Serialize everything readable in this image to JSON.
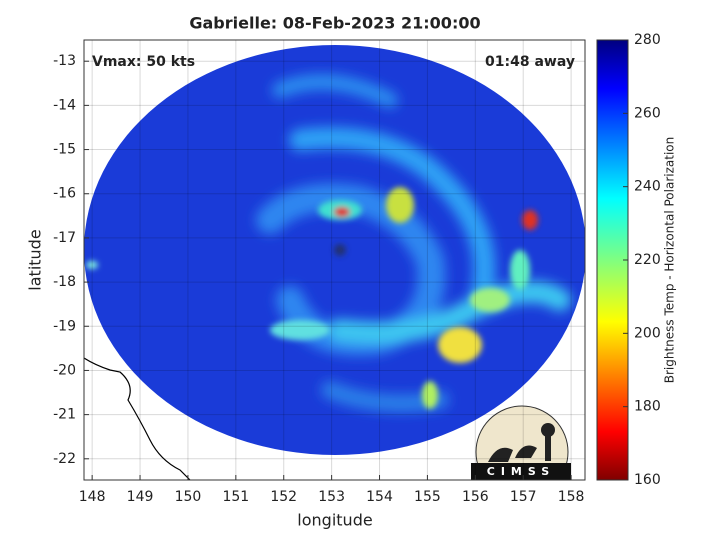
{
  "chart_data": {
    "type": "map",
    "title": "Gabrielle: 08-Feb-2023 21:00:00",
    "annotations": [
      "Vmax: 50 kts",
      "01:48 away"
    ],
    "xlabel": "longitude",
    "ylabel": "latitude",
    "xlim": [
      147.83,
      158.29
    ],
    "xticks": [
      148,
      149,
      150,
      151,
      152,
      153,
      154,
      155,
      156,
      157,
      158
    ],
    "ylim": [
      -22.48,
      -12.52
    ],
    "yticks": [
      -13,
      -14,
      -15,
      -16,
      -17,
      -18,
      -19,
      -20,
      -21,
      -22
    ],
    "grid": true,
    "colorbar_label": "Brightness Temp - Horizontal Polarization",
    "clim": [
      160,
      280
    ],
    "cticks": [
      160,
      180,
      200,
      220,
      240,
      260,
      280
    ],
    "logo_text": "CIMSS"
  }
}
